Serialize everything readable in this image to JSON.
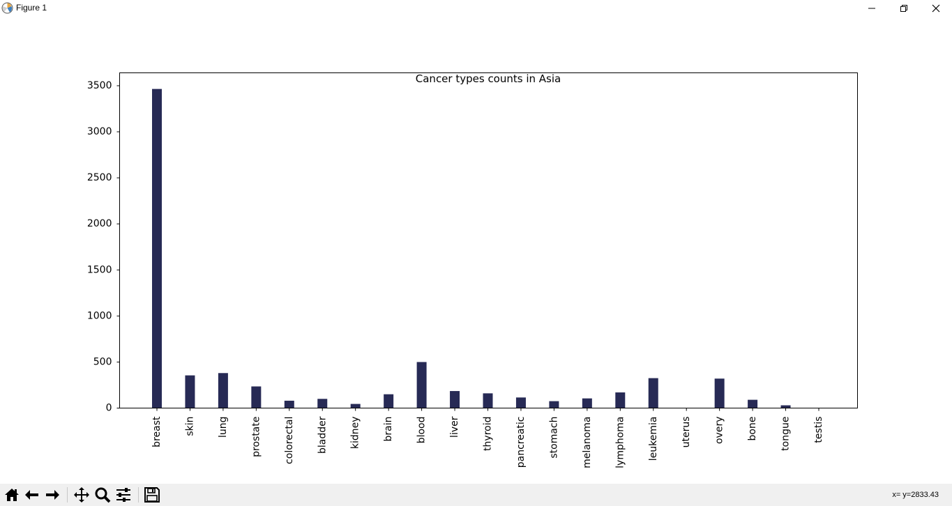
{
  "window": {
    "title": "Figure 1"
  },
  "toolbar": {
    "coords": "x= y=2833.43"
  },
  "chart_data": {
    "type": "bar",
    "title": "Cancer types counts in Asia",
    "xlabel": "",
    "ylabel": "",
    "categories": [
      "breast",
      "skin",
      "lung",
      "prostate",
      "colorectal",
      "bladder",
      "kidney",
      "brain",
      "blood",
      "liver",
      "thyroid",
      "pancreatic",
      "stomach",
      "melanoma",
      "lymphoma",
      "leukemia",
      "uterus",
      "overy",
      "bone",
      "tongue",
      "testis"
    ],
    "values": [
      3465,
      355,
      380,
      235,
      80,
      100,
      45,
      150,
      500,
      185,
      160,
      115,
      75,
      105,
      170,
      325,
      0,
      320,
      90,
      30,
      0
    ],
    "yticks": [
      0,
      500,
      1000,
      1500,
      2000,
      2500,
      3000,
      3500
    ],
    "ylim": [
      0,
      3640
    ],
    "bar_color": "#272a55",
    "grid": false,
    "legend": "none"
  }
}
